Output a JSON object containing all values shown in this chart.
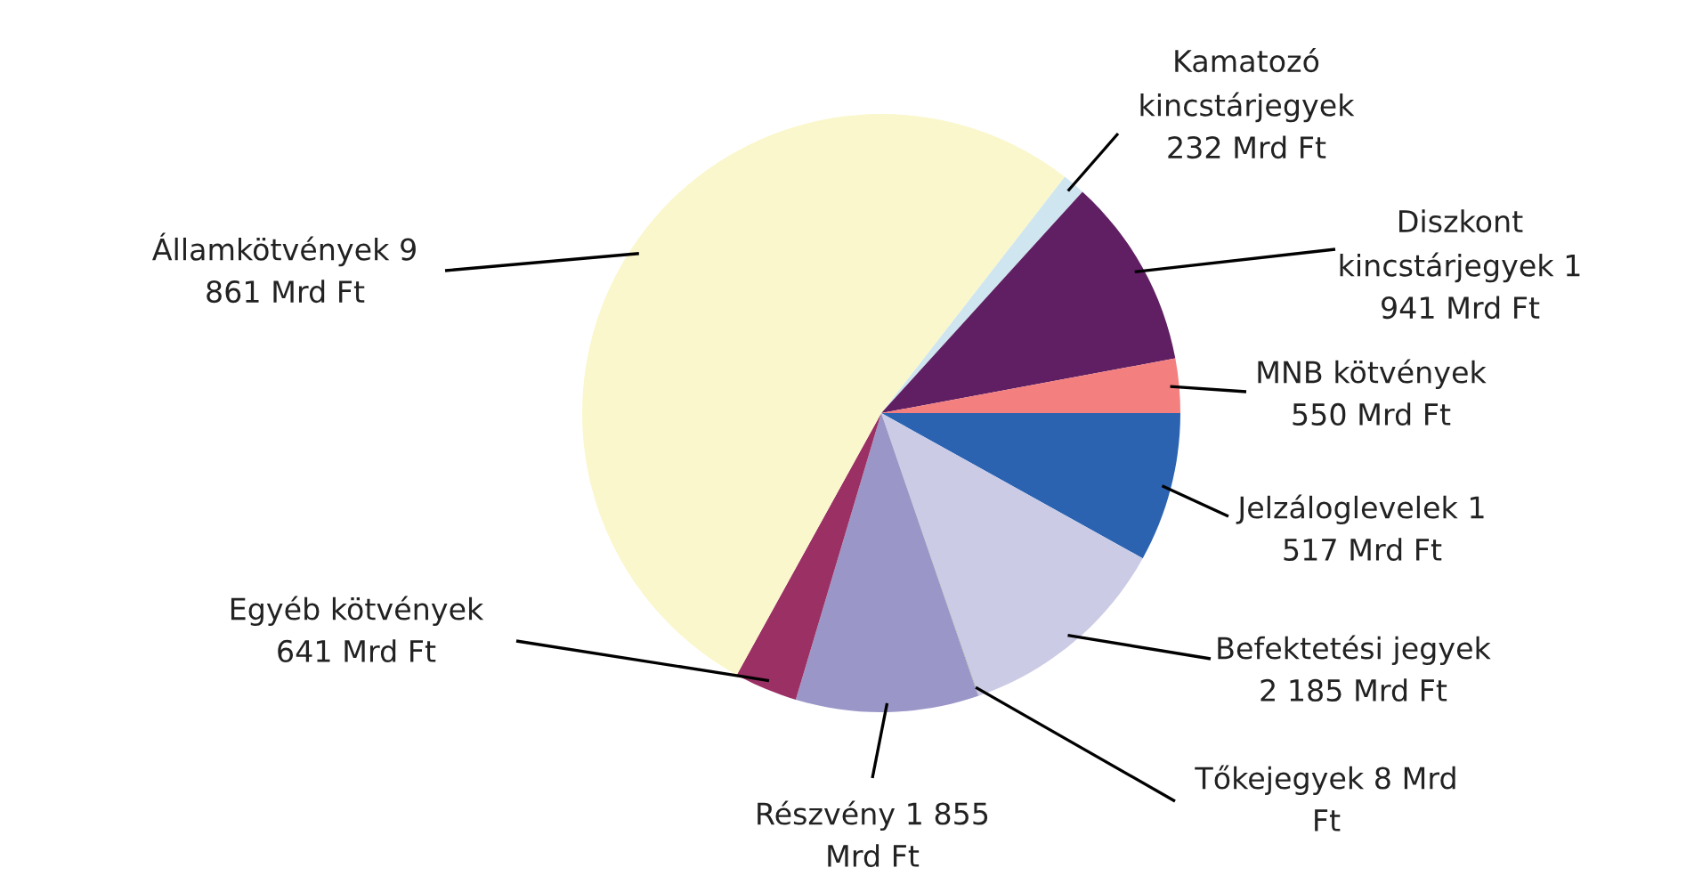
{
  "chart_data": {
    "type": "pie",
    "categories": [
      "Kamatozó\nkincstárjegyek\n232 Mrd Ft",
      "Diszkont\nkincstárjegyek 1\n941 Mrd Ft",
      "MNB kötvények\n550 Mrd Ft",
      "Jelzáloglevelek 1\n517 Mrd Ft",
      "Befektetési jegyek\n2 185 Mrd Ft",
      "Tőkejegyek 8 Mrd\nFt",
      "Részvény 1 855\nMrd Ft",
      "Egyéb kötvények\n641 Mrd Ft",
      "Államkötvények 9\n861 Mrd Ft"
    ],
    "values": [
      232,
      1941,
      550,
      1517,
      2185,
      8,
      1855,
      641,
      9861
    ],
    "colors": [
      "#cfe6f0",
      "#5f1f62",
      "#f47f7f",
      "#2b63b0",
      "#cccbe6",
      "#b0b0b0",
      "#9a97c8",
      "#9a3064",
      "#faf7cc"
    ],
    "legend": false
  }
}
